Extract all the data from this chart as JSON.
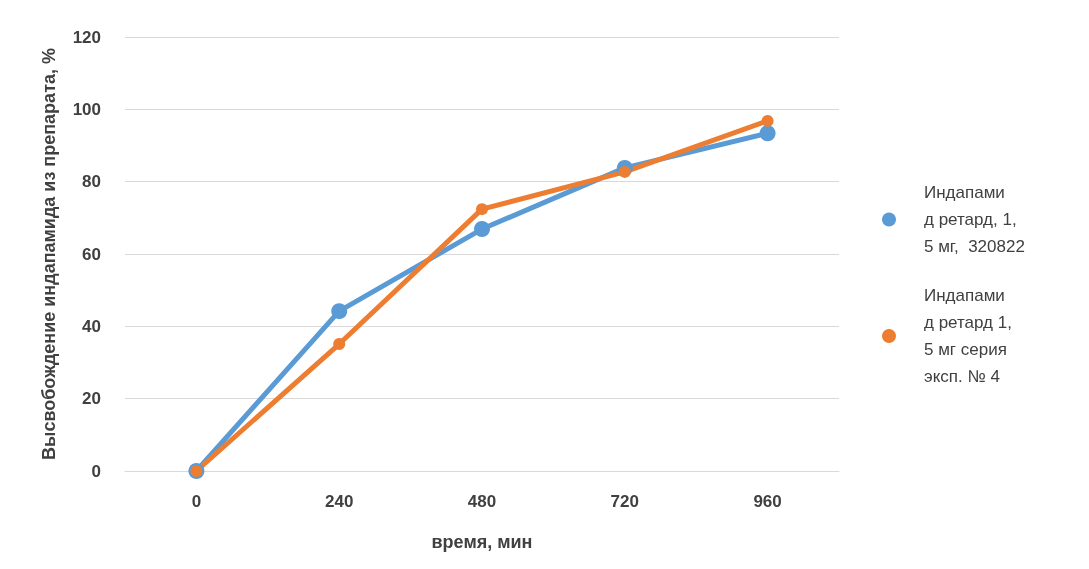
{
  "chart_data": {
    "type": "line",
    "xlabel": "время, мин",
    "ylabel": "Высвобождение индапамида из препарата, %",
    "categories": [
      "0",
      "240",
      "480",
      "720",
      "960"
    ],
    "series": [
      {
        "name": "Индапамид ретард, 1,5 мг,  320822",
        "color": "#5b9bd5",
        "values": [
          0,
          44.2,
          66.9,
          83.8,
          93.4
        ]
      },
      {
        "name": "Индапамид ретард 1,5 мг серия эксп. № 4",
        "color": "#ed7d31",
        "values": [
          0,
          35.1,
          72.4,
          82.7,
          96.8
        ]
      }
    ],
    "ylim": [
      0,
      120
    ],
    "yticks": [
      0,
      20,
      40,
      60,
      80,
      100,
      120
    ],
    "grid": "y",
    "legend": "right",
    "marker": "circle",
    "line_style": "solid"
  }
}
